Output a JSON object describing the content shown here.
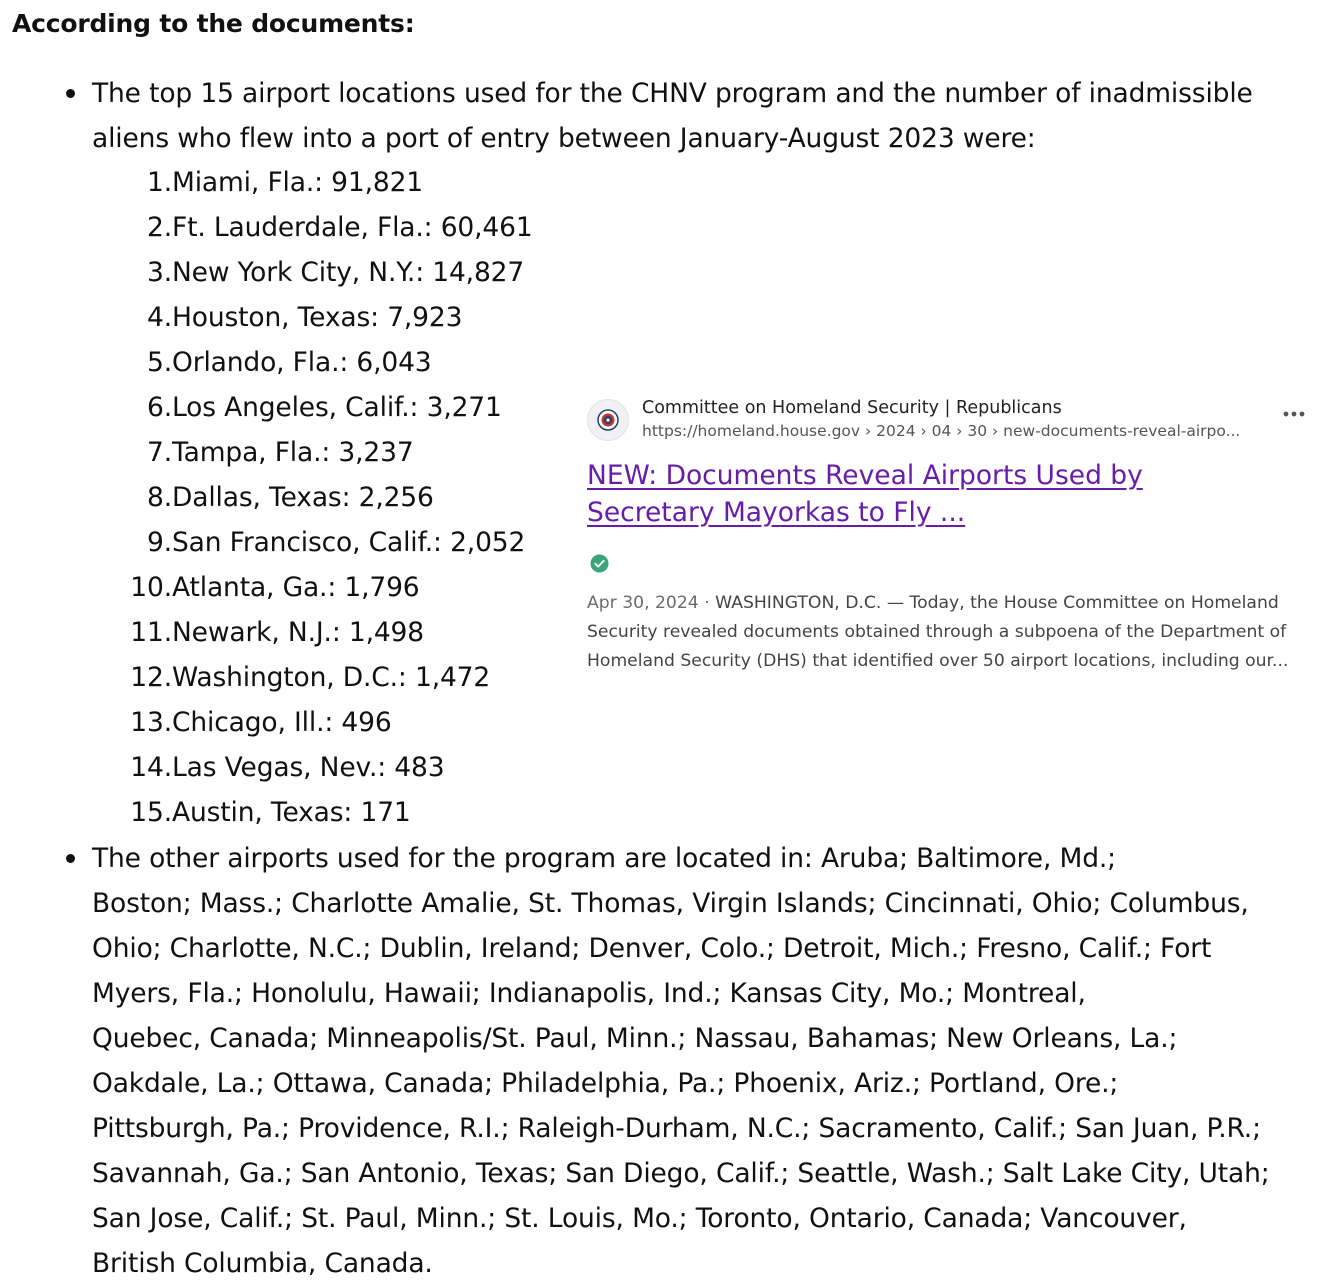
{
  "heading": "According to the documents:",
  "bullet1": {
    "line1": "The top 15 airport locations used for the CHNV program and the number of inadmissible",
    "line2": "aliens who flew into a port of entry between January-August 2023 were:"
  },
  "airports": [
    {
      "num": "1.",
      "text": "Miami, Fla.: 91,821"
    },
    {
      "num": "2.",
      "text": "Ft. Lauderdale, Fla.: 60,461"
    },
    {
      "num": "3.",
      "text": "New York City, N.Y.: 14,827"
    },
    {
      "num": "4.",
      "text": "Houston, Texas: 7,923"
    },
    {
      "num": "5.",
      "text": "Orlando, Fla.: 6,043"
    },
    {
      "num": "6.",
      "text": "Los Angeles, Calif.: 3,271"
    },
    {
      "num": "7.",
      "text": "Tampa, Fla.: 3,237"
    },
    {
      "num": "8.",
      "text": "Dallas, Texas: 2,256"
    },
    {
      "num": "9.",
      "text": "San Francisco, Calif.: 2,052"
    },
    {
      "num": "10.",
      "text": "Atlanta, Ga.: 1,796"
    },
    {
      "num": "11.",
      "text": "Newark, N.J.: 1,498"
    },
    {
      "num": "12.",
      "text": "Washington, D.C.: 1,472"
    },
    {
      "num": "13.",
      "text": "Chicago, Ill.: 496"
    },
    {
      "num": "14.",
      "text": "Las Vegas, Nev.: 483"
    },
    {
      "num": "15.",
      "text": "Austin, Texas: 171"
    }
  ],
  "source_card": {
    "favicon": "seal-icon",
    "source_name": "Committee on Homeland Security | Republicans",
    "url": "https://homeland.house.gov › 2024 › 04 › 30 › new-documents-reveal-airpo...",
    "title_line1": "NEW: Documents Reveal Airports Used by",
    "title_line2": "Secretary Mayorkas to Fly ...",
    "date": "Apr 30, 2024 · ",
    "snippet_line1": "WASHINGTON, D.C. — Today, the House Committee on Homeland",
    "snippet_line2": "Security revealed documents obtained through a subpoena of the Department of",
    "snippet_line3": "Homeland Security (DHS) that identified over 50 airport locations, including our...",
    "title_color": "#681da8",
    "verified_color": "#3aa57a"
  },
  "bullet2": {
    "lines": [
      "The other airports used for the program are located in: Aruba; Baltimore, Md.;",
      "Boston; Mass.; Charlotte Amalie, St. Thomas, Virgin Islands; Cincinnati, Ohio; Columbus,",
      "Ohio; Charlotte, N.C.; Dublin, Ireland; Denver, Colo.; Detroit, Mich.; Fresno, Calif.; Fort",
      "Myers, Fla.; Honolulu, Hawaii; Indianapolis, Ind.; Kansas City, Mo.; Montreal,",
      "Quebec, Canada; Minneapolis/St. Paul, Minn.; Nassau, Bahamas; New Orleans, La.;",
      "Oakdale, La.; Ottawa, Canada; Philadelphia, Pa.; Phoenix, Ariz.; Portland, Ore.;",
      "Pittsburgh, Pa.; Providence, R.I.; Raleigh-Durham, N.C.; Sacramento, Calif.; San Juan, P.R.;",
      "Savannah, Ga.; San Antonio, Texas; San Diego, Calif.; Seattle, Wash.; Salt Lake City, Utah;",
      "San Jose, Calif.; St. Paul, Minn.; St. Louis, Mo.; Toronto, Ontario, Canada; Vancouver,",
      "British Columbia, Canada."
    ]
  }
}
